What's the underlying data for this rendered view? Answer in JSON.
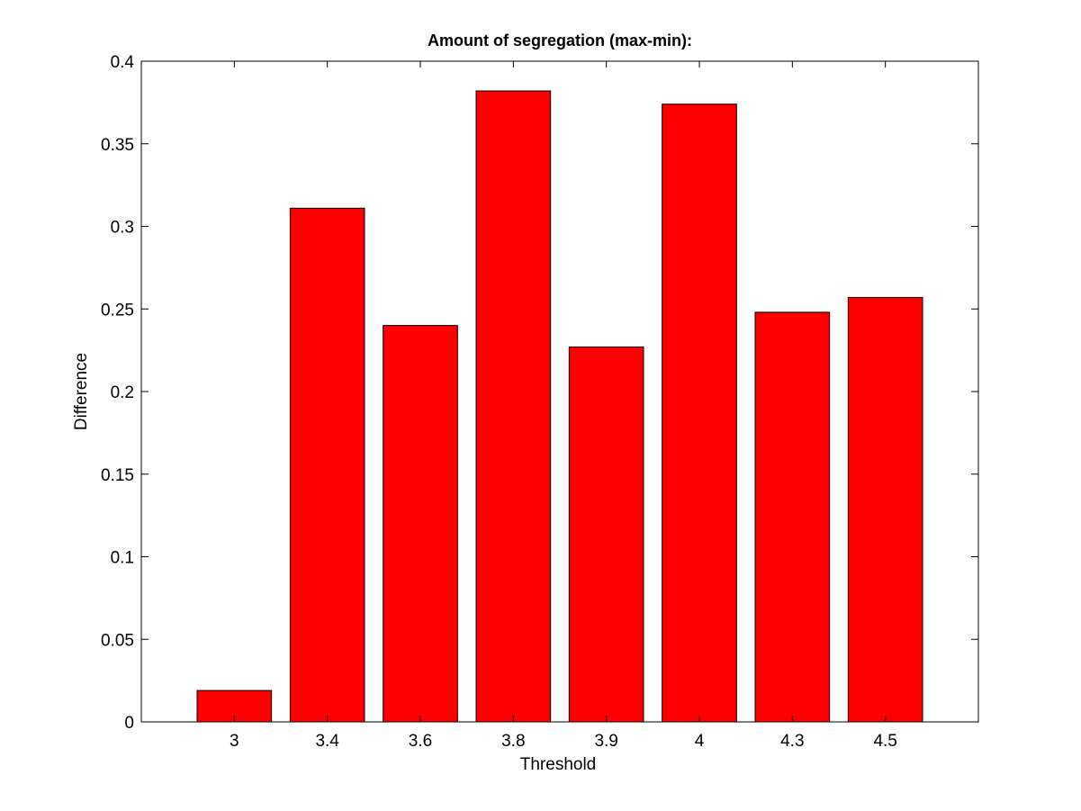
{
  "chart_data": {
    "type": "bar",
    "title": "Amount of segregation (max-min):",
    "xlabel": "Threshold",
    "ylabel": "Difference",
    "categories": [
      "3",
      "3.4",
      "3.6",
      "3.8",
      "3.9",
      "4",
      "4.3",
      "4.5"
    ],
    "values": [
      0.019,
      0.311,
      0.24,
      0.382,
      0.227,
      0.374,
      0.248,
      0.257
    ],
    "ylim": [
      0,
      0.4
    ],
    "yticks": [
      "0",
      "0.05",
      "0.1",
      "0.15",
      "0.2",
      "0.25",
      "0.3",
      "0.35",
      "0.4"
    ],
    "bar_color": "#ff0000",
    "grid": false,
    "legend": "none"
  }
}
